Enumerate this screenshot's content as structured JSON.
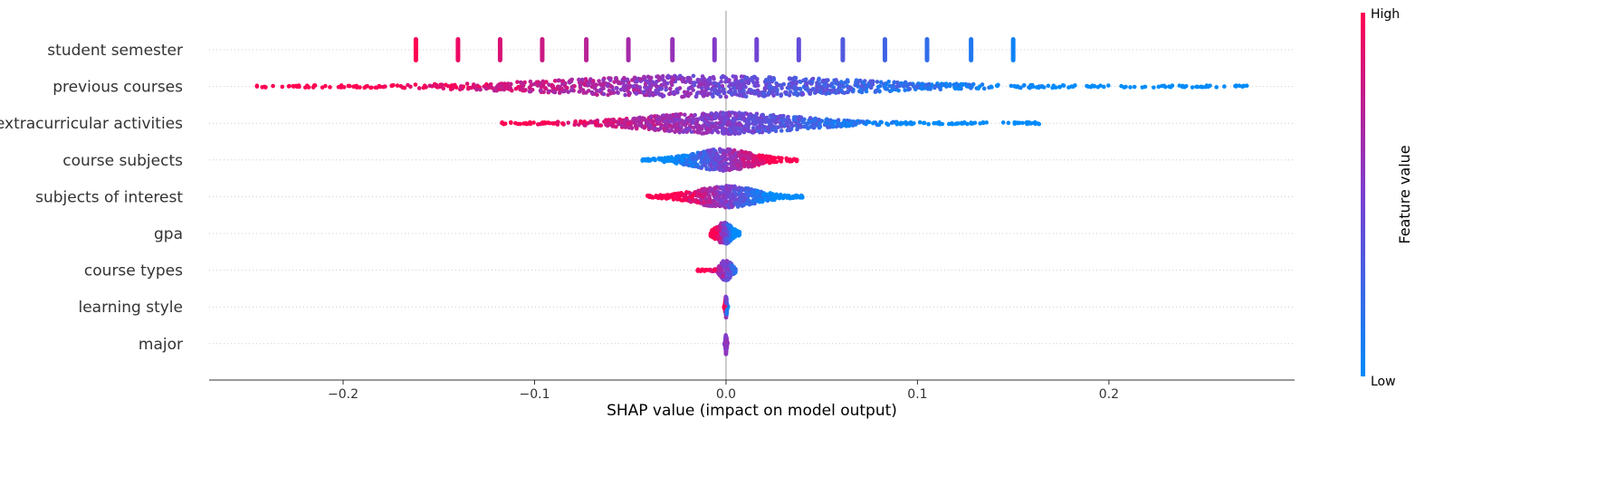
{
  "chart_data": {
    "type": "scatter",
    "subtype": "shap-beeswarm",
    "title": "",
    "xlabel": "SHAP value (impact on model output)",
    "ylabel": "",
    "xlim": [
      -0.27,
      0.297
    ],
    "xticks": [
      {
        "value": -0.2,
        "label": "−0.2"
      },
      {
        "value": -0.1,
        "label": "−0.1"
      },
      {
        "value": 0.0,
        "label": "0.0"
      },
      {
        "value": 0.1,
        "label": "0.1"
      },
      {
        "value": 0.2,
        "label": "0.2"
      }
    ],
    "zero_line": 0.0,
    "grid": false,
    "colorbar": {
      "title": "Feature value",
      "high_label": "High",
      "low_label": "Low",
      "high_color": "#ff0052",
      "mid_color": "#7b3fd0",
      "low_color": "#008bfb"
    },
    "features": [
      {
        "name": "student semester",
        "mode": "discrete",
        "points": [
          {
            "x": -0.162,
            "v": 1.0
          },
          {
            "x": -0.14,
            "v": 0.93
          },
          {
            "x": -0.118,
            "v": 0.86
          },
          {
            "x": -0.096,
            "v": 0.8
          },
          {
            "x": -0.073,
            "v": 0.73
          },
          {
            "x": -0.051,
            "v": 0.66
          },
          {
            "x": -0.028,
            "v": 0.6
          },
          {
            "x": -0.006,
            "v": 0.53
          },
          {
            "x": 0.016,
            "v": 0.46
          },
          {
            "x": 0.038,
            "v": 0.4
          },
          {
            "x": 0.061,
            "v": 0.33
          },
          {
            "x": 0.083,
            "v": 0.26
          },
          {
            "x": 0.105,
            "v": 0.2
          },
          {
            "x": 0.128,
            "v": 0.13
          },
          {
            "x": 0.15,
            "v": 0.06
          }
        ]
      },
      {
        "name": "previous courses",
        "mode": "spread",
        "min": -0.245,
        "max": 0.272,
        "center": -0.012,
        "count": 1100,
        "width": 0.17,
        "direction": "high-left"
      },
      {
        "name": "extracurricular activities",
        "mode": "spread",
        "min": -0.117,
        "max": 0.164,
        "center": -0.002,
        "count": 900,
        "width": 0.085,
        "direction": "high-left"
      },
      {
        "name": "course subjects",
        "mode": "spread",
        "min": -0.044,
        "max": 0.037,
        "center": -0.002,
        "count": 500,
        "width": 0.035,
        "direction": "high-right"
      },
      {
        "name": "subjects of interest",
        "mode": "spread",
        "min": -0.041,
        "max": 0.04,
        "center": 0.0,
        "count": 500,
        "width": 0.035,
        "direction": "high-left"
      },
      {
        "name": "gpa",
        "mode": "spread",
        "min": -0.008,
        "max": 0.007,
        "center": -0.001,
        "count": 250,
        "width": 0.009,
        "direction": "high-left"
      },
      {
        "name": "course types",
        "mode": "spread",
        "min": -0.015,
        "max": 0.005,
        "center": 0.0,
        "count": 150,
        "width": 0.006,
        "direction": "high-left"
      },
      {
        "name": "learning style",
        "mode": "spread",
        "min": -0.001,
        "max": 0.001,
        "center": 0.0,
        "count": 120,
        "width": 0.0008,
        "direction": "high-left"
      },
      {
        "name": "major",
        "mode": "spread",
        "min": -0.0008,
        "max": 0.0008,
        "center": 0.0,
        "count": 120,
        "width": 0.0006,
        "direction": "neutral"
      }
    ]
  }
}
